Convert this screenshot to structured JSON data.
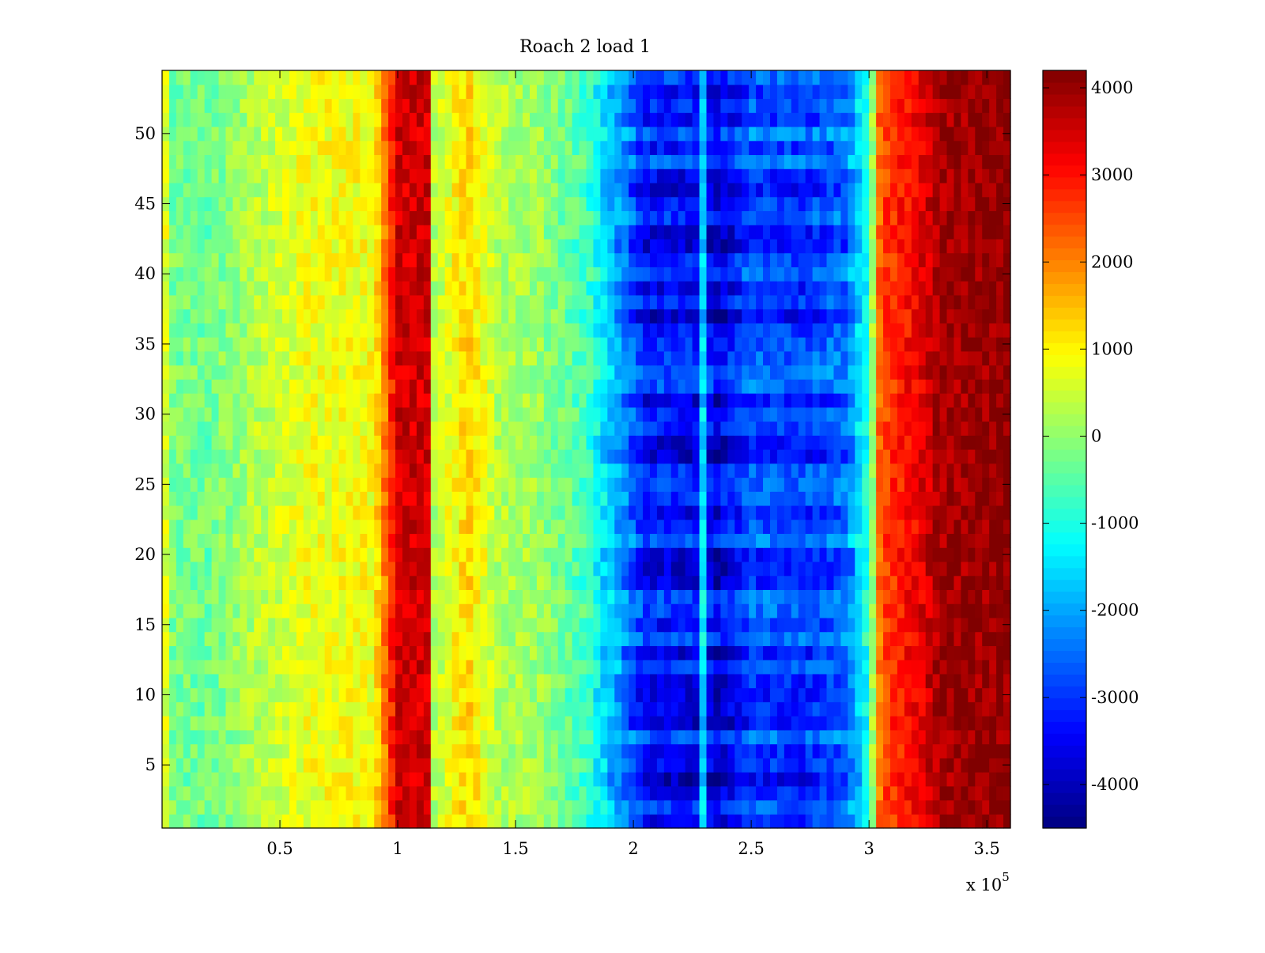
{
  "chart_data": {
    "type": "heatmap",
    "title": "Roach 2 load 1",
    "xlabel": "",
    "ylabel": "",
    "x_multiplier_label": "x 10",
    "x_multiplier_exponent": "5",
    "xlim": [
      0,
      3.6
    ],
    "ylim": [
      0.5,
      54.5
    ],
    "rows": 54,
    "x_ticks": [
      {
        "value": 0.5,
        "label": "0.5"
      },
      {
        "value": 1,
        "label": "1"
      },
      {
        "value": 1.5,
        "label": "1.5"
      },
      {
        "value": 2,
        "label": "2"
      },
      {
        "value": 2.5,
        "label": "2.5"
      },
      {
        "value": 3,
        "label": "3"
      },
      {
        "value": 3.5,
        "label": "3.5"
      }
    ],
    "y_ticks": [
      {
        "value": 5,
        "label": "5"
      },
      {
        "value": 10,
        "label": "10"
      },
      {
        "value": 15,
        "label": "15"
      },
      {
        "value": 20,
        "label": "20"
      },
      {
        "value": 25,
        "label": "25"
      },
      {
        "value": 30,
        "label": "30"
      },
      {
        "value": 35,
        "label": "35"
      },
      {
        "value": 40,
        "label": "40"
      },
      {
        "value": 45,
        "label": "45"
      },
      {
        "value": 50,
        "label": "50"
      }
    ],
    "colorbar": {
      "colormap": "jet",
      "range": [
        -4500,
        4200
      ],
      "ticks": [
        {
          "value": 4000,
          "label": "4000"
        },
        {
          "value": 3000,
          "label": "3000"
        },
        {
          "value": 2000,
          "label": "2000"
        },
        {
          "value": 1000,
          "label": "1000"
        },
        {
          "value": 0,
          "label": "0"
        },
        {
          "value": -1000,
          "label": "-1000"
        },
        {
          "value": -2000,
          "label": "-2000"
        },
        {
          "value": -3000,
          "label": "-3000"
        },
        {
          "value": -4000,
          "label": "-4000"
        }
      ]
    },
    "column_profile": [
      {
        "x": 0.0,
        "value": 1500
      },
      {
        "x": 0.03,
        "value": -200
      },
      {
        "x": 0.2,
        "value": -300
      },
      {
        "x": 0.4,
        "value": 300
      },
      {
        "x": 0.6,
        "value": 800
      },
      {
        "x": 0.9,
        "value": 900
      },
      {
        "x": 1.0,
        "value": 3500
      },
      {
        "x": 1.13,
        "value": 3500
      },
      {
        "x": 1.14,
        "value": 200
      },
      {
        "x": 1.2,
        "value": 600
      },
      {
        "x": 1.3,
        "value": 1300
      },
      {
        "x": 1.42,
        "value": 300
      },
      {
        "x": 1.6,
        "value": 100
      },
      {
        "x": 1.8,
        "value": -700
      },
      {
        "x": 1.95,
        "value": -2200
      },
      {
        "x": 2.05,
        "value": -3300
      },
      {
        "x": 2.28,
        "value": -3400
      },
      {
        "x": 2.3,
        "value": -1000
      },
      {
        "x": 2.33,
        "value": -3900
      },
      {
        "x": 2.5,
        "value": -2800
      },
      {
        "x": 2.7,
        "value": -3000
      },
      {
        "x": 2.9,
        "value": -2600
      },
      {
        "x": 3.0,
        "value": -800
      },
      {
        "x": 3.05,
        "value": 2500
      },
      {
        "x": 3.2,
        "value": 3200
      },
      {
        "x": 3.3,
        "value": 3900
      },
      {
        "x": 3.6,
        "value": 4100
      }
    ]
  }
}
